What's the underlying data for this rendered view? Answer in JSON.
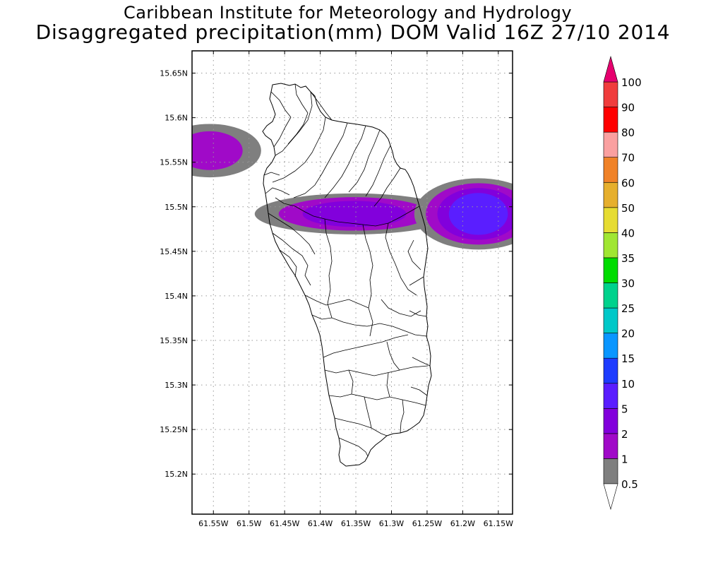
{
  "header": {
    "title": "Caribbean Institute for Meteorology and Hydrology",
    "subtitle": "Disaggregated precipitation(mm) DOM Valid 16Z 27/10 2014"
  },
  "map": {
    "region": "Dominica",
    "lon_range": [
      -61.58,
      -61.13
    ],
    "lat_range": [
      15.155,
      15.675
    ],
    "lat_ticks": [
      {
        "value": 15.65,
        "label": "15.65N"
      },
      {
        "value": 15.6,
        "label": "15.6N"
      },
      {
        "value": 15.55,
        "label": "15.55N"
      },
      {
        "value": 15.5,
        "label": "15.5N"
      },
      {
        "value": 15.45,
        "label": "15.45N"
      },
      {
        "value": 15.4,
        "label": "15.4N"
      },
      {
        "value": 15.35,
        "label": "15.35N"
      },
      {
        "value": 15.3,
        "label": "15.3N"
      },
      {
        "value": 15.25,
        "label": "15.25N"
      },
      {
        "value": 15.2,
        "label": "15.2N"
      }
    ],
    "lon_ticks": [
      {
        "value": -61.55,
        "label": "61.55W"
      },
      {
        "value": -61.5,
        "label": "61.5W"
      },
      {
        "value": -61.45,
        "label": "61.45W"
      },
      {
        "value": -61.4,
        "label": "61.4W"
      },
      {
        "value": -61.35,
        "label": "61.35W"
      },
      {
        "value": -61.3,
        "label": "61.3W"
      },
      {
        "value": -61.25,
        "label": "61.25W"
      },
      {
        "value": -61.2,
        "label": "61.2W"
      },
      {
        "value": -61.15,
        "label": "61.15W"
      }
    ],
    "grid": true,
    "precip_cells": [
      {
        "lon": -61.555,
        "lat": 15.563,
        "rx_deg": 0.072,
        "ry_deg": 0.03,
        "levels": [
          "0.5",
          "1"
        ]
      },
      {
        "lon": -61.352,
        "lat": 15.492,
        "rx_deg": 0.14,
        "ry_deg": 0.023,
        "levels": [
          "0.5",
          "1",
          "2"
        ]
      },
      {
        "lon": -61.178,
        "lat": 15.492,
        "rx_deg": 0.09,
        "ry_deg": 0.04,
        "levels": [
          "0.5",
          "1",
          "2",
          "5"
        ]
      }
    ]
  },
  "colorbar": {
    "levels": [
      {
        "label": "0.5",
        "color": "#7f7f7f"
      },
      {
        "label": "1",
        "color": "#a00ac8"
      },
      {
        "label": "2",
        "color": "#8200dc"
      },
      {
        "label": "5",
        "color": "#5a1eff"
      },
      {
        "label": "10",
        "color": "#1e3cff"
      },
      {
        "label": "15",
        "color": "#0a96ff"
      },
      {
        "label": "20",
        "color": "#00c8c8"
      },
      {
        "label": "25",
        "color": "#00d28c"
      },
      {
        "label": "30",
        "color": "#00dc00"
      },
      {
        "label": "35",
        "color": "#a0e632"
      },
      {
        "label": "40",
        "color": "#e6dc32"
      },
      {
        "label": "50",
        "color": "#e6af2d"
      },
      {
        "label": "60",
        "color": "#f08228"
      },
      {
        "label": "70",
        "color": "#faa0a0"
      },
      {
        "label": "80",
        "color": "#ff0000"
      },
      {
        "label": "90",
        "color": "#f03c3c"
      },
      {
        "label": "100",
        "color": "#e6006e"
      }
    ]
  }
}
